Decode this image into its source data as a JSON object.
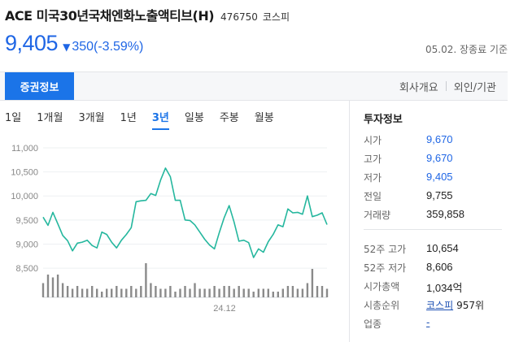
{
  "stock": {
    "name": "ACE 미국30년국채엔화노출액티브(H)",
    "code": "476750",
    "market": "코스피",
    "price": "9,405",
    "change_arrow": "▼",
    "change": "350(-3.59%)",
    "price_date": "05.02. 장종료 기준",
    "color_down": "#1f66e5"
  },
  "tabs": {
    "active": "증권정보",
    "right": [
      "회사개요",
      "외인/기관"
    ]
  },
  "period_tabs": [
    {
      "label": "1일",
      "active": false
    },
    {
      "label": "1개월",
      "active": false
    },
    {
      "label": "3개월",
      "active": false
    },
    {
      "label": "1년",
      "active": false
    },
    {
      "label": "3년",
      "active": true
    },
    {
      "label": "일봉",
      "active": false
    },
    {
      "label": "주봉",
      "active": false
    },
    {
      "label": "월봉",
      "active": false
    }
  ],
  "chart_data": {
    "type": "line",
    "y_ticks": [
      "11,000",
      "10,500",
      "10,000",
      "9,500",
      "9,000",
      "8,500"
    ],
    "ylim": [
      8400,
      11000
    ],
    "x_tick_label": "24.12",
    "line_color": "#25b79e",
    "volume_color": "#8a8a8a",
    "series": [
      {
        "values": [
          9560,
          9390,
          9660,
          9420,
          9180,
          9070,
          8860,
          9020,
          9040,
          9080,
          8970,
          8920,
          9250,
          9200,
          9040,
          8920,
          9080,
          9200,
          9340,
          9880,
          9900,
          9910,
          10050,
          10010,
          10330,
          10580,
          10400,
          9910,
          9910,
          9500,
          9490,
          9400,
          9250,
          9100,
          8980,
          8900,
          9240,
          9550,
          9800,
          9460,
          9060,
          9080,
          9030,
          8720,
          8900,
          8830,
          9050,
          9200,
          9400,
          9360,
          9730,
          9650,
          9660,
          9620,
          10000,
          9570,
          9600,
          9650,
          9405
        ]
      }
    ],
    "volume": [
      5,
      8,
      7,
      8,
      5,
      4,
      3,
      4,
      3,
      3,
      4,
      3,
      2,
      3,
      3,
      4,
      3,
      3,
      4,
      3,
      4,
      12,
      5,
      4,
      3,
      3,
      4,
      2,
      3,
      4,
      3,
      5,
      3,
      3,
      3,
      4,
      3,
      4,
      4,
      3,
      4,
      3,
      3,
      2,
      3,
      3,
      3,
      2,
      2,
      3,
      4,
      4,
      3,
      3,
      5,
      10,
      4,
      4,
      3
    ]
  },
  "info": {
    "title": "투자정보",
    "rows_top": [
      {
        "label": "시가",
        "value": "9,670",
        "blue": true
      },
      {
        "label": "고가",
        "value": "9,670",
        "blue": true
      },
      {
        "label": "저가",
        "value": "9,405",
        "blue": true
      },
      {
        "label": "전일",
        "value": "9,755",
        "blue": false
      },
      {
        "label": "거래량",
        "value": "359,858",
        "blue": false
      }
    ],
    "rows_bottom": [
      {
        "label": "52주 고가",
        "value": "10,654"
      },
      {
        "label": "52주 저가",
        "value": "8,606"
      },
      {
        "label": "시가총액",
        "value": "1,034억"
      }
    ],
    "rank_label": "시총순위",
    "rank_market": "코스피",
    "rank_value": "957위",
    "sector_label": "업종",
    "sector_value": "-"
  }
}
